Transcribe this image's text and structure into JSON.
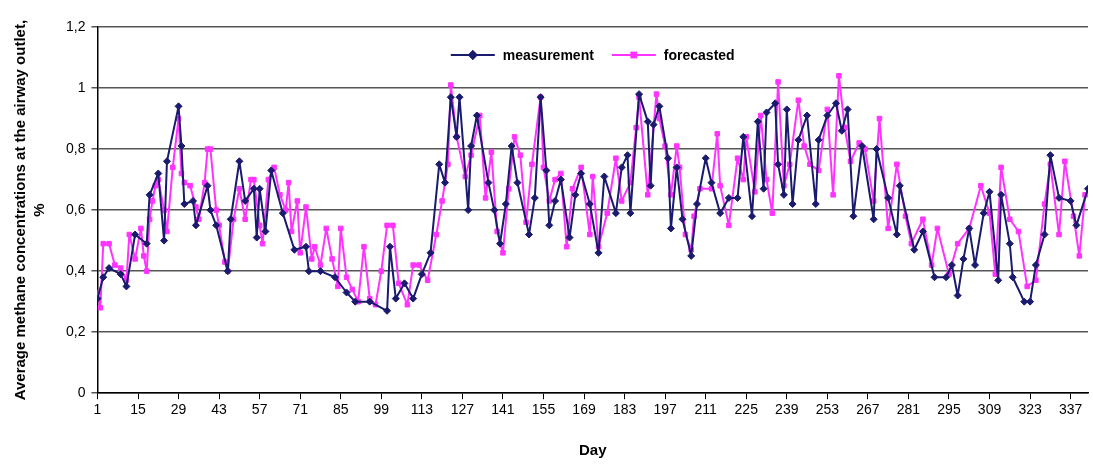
{
  "chart_data": {
    "type": "line",
    "xlabel": "Day",
    "ylabel": "Average methane concentrations at the airway outlet, %",
    "xlim": [
      1,
      343
    ],
    "xticks": [
      1,
      15,
      29,
      43,
      57,
      71,
      85,
      99,
      113,
      127,
      141,
      155,
      169,
      183,
      197,
      211,
      225,
      239,
      253,
      267,
      281,
      295,
      309,
      323,
      337
    ],
    "ylim": [
      0,
      1.2
    ],
    "yticks": [
      0,
      {
        "value": 0.2,
        "label": "0,2"
      },
      {
        "value": 0.4,
        "label": "0,4"
      },
      {
        "value": 0.6,
        "label": "0,6"
      },
      {
        "value": 0.8,
        "label": "0,8"
      },
      1,
      {
        "value": 1.2,
        "label": "1,2"
      }
    ],
    "grid": "y",
    "legend": "top",
    "line_style": "solid",
    "series": [
      {
        "name": "measurement",
        "color": "#1a1a6e",
        "marker": "diamond",
        "x": [
          1,
          3,
          5,
          9,
          11,
          14,
          18,
          19,
          22,
          24,
          25,
          29,
          30,
          31,
          34,
          35,
          39,
          40,
          42,
          46,
          47,
          50,
          52,
          55,
          56,
          57,
          59,
          61,
          65,
          69,
          73,
          74,
          78,
          83,
          87,
          90,
          95,
          101,
          102,
          104,
          107,
          110,
          113,
          116,
          119,
          121,
          123,
          125,
          126,
          129,
          130,
          132,
          136,
          138,
          140,
          142,
          144,
          146,
          150,
          152,
          154,
          156,
          157,
          159,
          161,
          164,
          166,
          168,
          171,
          174,
          176,
          180,
          182,
          184,
          185,
          188,
          191,
          192,
          193,
          195,
          198,
          199,
          201,
          203,
          206,
          208,
          211,
          213,
          216,
          219,
          222,
          224,
          227,
          229,
          231,
          232,
          235,
          236,
          238,
          239,
          241,
          243,
          246,
          249,
          250,
          253,
          256,
          258,
          260,
          262,
          265,
          269,
          270,
          274,
          277,
          278,
          283,
          286,
          290,
          294,
          296,
          298,
          300,
          302,
          304,
          307,
          309,
          312,
          313,
          316,
          317,
          321,
          323,
          325,
          328,
          330,
          333,
          337,
          339,
          343
        ],
        "values": [
          0.31,
          0.38,
          0.41,
          0.39,
          0.35,
          0.52,
          0.49,
          0.65,
          0.72,
          0.5,
          0.76,
          0.94,
          0.81,
          0.62,
          0.63,
          0.55,
          0.68,
          0.6,
          0.55,
          0.4,
          0.57,
          0.76,
          0.63,
          0.67,
          0.51,
          0.67,
          0.53,
          0.73,
          0.59,
          0.47,
          0.48,
          0.4,
          0.4,
          0.38,
          0.33,
          0.3,
          0.3,
          0.27,
          0.48,
          0.31,
          0.36,
          0.31,
          0.39,
          0.46,
          0.75,
          0.69,
          0.97,
          0.84,
          0.97,
          0.6,
          0.81,
          0.91,
          0.69,
          0.6,
          0.49,
          0.62,
          0.81,
          0.69,
          0.52,
          0.64,
          0.97,
          0.73,
          0.55,
          0.63,
          0.7,
          0.51,
          0.65,
          0.72,
          0.62,
          0.46,
          0.71,
          0.59,
          0.74,
          0.78,
          0.59,
          0.98,
          0.89,
          0.68,
          0.88,
          0.94,
          0.77,
          0.54,
          0.74,
          0.57,
          0.45,
          0.62,
          0.77,
          0.69,
          0.59,
          0.64,
          0.64,
          0.84,
          0.58,
          0.89,
          0.67,
          0.92,
          0.95,
          0.75,
          0.65,
          0.93,
          0.62,
          0.83,
          0.91,
          0.62,
          0.83,
          0.91,
          0.95,
          0.86,
          0.93,
          0.58,
          0.81,
          0.57,
          0.8,
          0.64,
          0.52,
          0.68,
          0.47,
          0.53,
          0.38,
          0.38,
          0.42,
          0.32,
          0.44,
          0.54,
          0.42,
          0.59,
          0.66,
          0.37,
          0.65,
          0.49,
          0.38,
          0.3,
          0.3,
          0.42,
          0.52,
          0.78,
          0.64,
          0.63,
          0.55,
          0.67
        ]
      },
      {
        "name": "forecasted",
        "color": "#ff33ff",
        "marker": "square",
        "x": [
          1,
          2,
          3,
          5,
          7,
          9,
          11,
          12,
          14,
          16,
          17,
          18,
          19,
          20,
          21,
          22,
          24,
          25,
          27,
          29,
          30,
          31,
          33,
          35,
          36,
          38,
          39,
          40,
          42,
          43,
          45,
          46,
          48,
          50,
          52,
          54,
          55,
          57,
          58,
          60,
          62,
          64,
          66,
          67,
          68,
          70,
          71,
          73,
          75,
          76,
          78,
          80,
          82,
          84,
          85,
          87,
          89,
          91,
          93,
          95,
          97,
          99,
          101,
          103,
          105,
          108,
          110,
          112,
          115,
          118,
          120,
          122,
          123,
          125,
          128,
          130,
          133,
          135,
          137,
          139,
          141,
          143,
          145,
          147,
          149,
          151,
          154,
          155,
          157,
          159,
          161,
          163,
          165,
          168,
          171,
          172,
          174,
          177,
          180,
          182,
          185,
          187,
          188,
          191,
          194,
          195,
          197,
          199,
          201,
          202,
          204,
          206,
          207,
          209,
          213,
          215,
          216,
          219,
          222,
          224,
          225,
          228,
          230,
          232,
          234,
          236,
          238,
          240,
          243,
          245,
          247,
          250,
          253,
          255,
          257,
          259,
          261,
          264,
          266,
          269,
          271,
          274,
          277,
          280,
          282,
          286,
          289,
          291,
          295,
          298,
          302,
          306,
          309,
          311,
          313,
          316,
          319,
          322,
          325,
          328,
          330,
          333,
          335,
          338,
          340,
          342
        ],
        "values": [
          0.33,
          0.28,
          0.49,
          0.49,
          0.42,
          0.41,
          0.37,
          0.52,
          0.44,
          0.54,
          0.45,
          0.4,
          0.57,
          0.63,
          0.68,
          0.7,
          0.6,
          0.53,
          0.74,
          0.9,
          0.72,
          0.69,
          0.68,
          0.61,
          0.57,
          0.69,
          0.8,
          0.8,
          0.6,
          0.55,
          0.43,
          0.4,
          0.57,
          0.67,
          0.57,
          0.7,
          0.7,
          0.55,
          0.49,
          0.7,
          0.74,
          0.65,
          0.6,
          0.69,
          0.53,
          0.63,
          0.46,
          0.61,
          0.44,
          0.48,
          0.42,
          0.54,
          0.44,
          0.35,
          0.54,
          0.38,
          0.34,
          0.3,
          0.48,
          0.31,
          0.29,
          0.4,
          0.55,
          0.55,
          0.36,
          0.29,
          0.42,
          0.42,
          0.37,
          0.52,
          0.63,
          0.75,
          1.01,
          0.84,
          0.71,
          0.78,
          0.91,
          0.64,
          0.79,
          0.53,
          0.46,
          0.67,
          0.84,
          0.78,
          0.56,
          0.75,
          0.97,
          0.74,
          0.63,
          0.7,
          0.72,
          0.48,
          0.67,
          0.74,
          0.52,
          0.71,
          0.48,
          0.59,
          0.77,
          0.63,
          0.69,
          0.87,
          0.97,
          0.65,
          0.98,
          0.9,
          0.81,
          0.65,
          0.81,
          0.74,
          0.52,
          0.47,
          0.58,
          0.67,
          0.67,
          0.85,
          0.68,
          0.55,
          0.77,
          0.7,
          0.84,
          0.66,
          0.91,
          0.7,
          0.59,
          1.02,
          0.68,
          0.75,
          0.96,
          0.81,
          0.75,
          0.73,
          0.93,
          0.65,
          1.04,
          0.87,
          0.76,
          0.82,
          0.8,
          0.63,
          0.9,
          0.54,
          0.75,
          0.58,
          0.49,
          0.57,
          0.42,
          0.54,
          0.39,
          0.49,
          0.54,
          0.68,
          0.59,
          0.39,
          0.74,
          0.57,
          0.53,
          0.35,
          0.37,
          0.62,
          0.75,
          0.52,
          0.76,
          0.58,
          0.45,
          0.65
        ]
      }
    ]
  }
}
